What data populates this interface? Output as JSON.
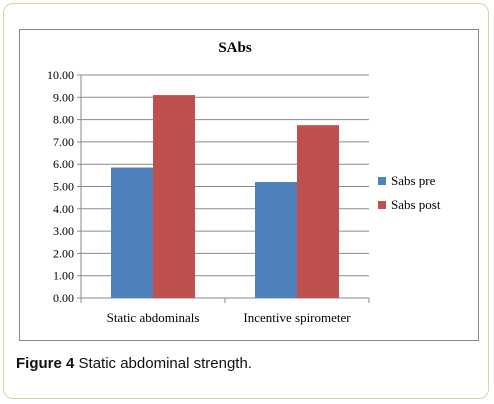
{
  "caption": {
    "label": "Figure 4",
    "text": " Static abdominal strength."
  },
  "chart_data": {
    "type": "bar",
    "title": "SAbs",
    "xlabel": "",
    "ylabel": "",
    "categories": [
      "Static abdominals",
      "Incentive spirometer"
    ],
    "series": [
      {
        "name": "Sabs pre",
        "color": "#4f81bd",
        "values": [
          5.85,
          5.2
        ]
      },
      {
        "name": "Sabs post",
        "color": "#c0504d",
        "values": [
          9.1,
          7.75
        ]
      }
    ],
    "ylim": [
      0,
      10
    ],
    "yticks": [
      "0.00",
      "1.00",
      "2.00",
      "3.00",
      "4.00",
      "5.00",
      "6.00",
      "7.00",
      "8.00",
      "9.00",
      "10.00"
    ],
    "grid": true,
    "legend_position": "right"
  }
}
